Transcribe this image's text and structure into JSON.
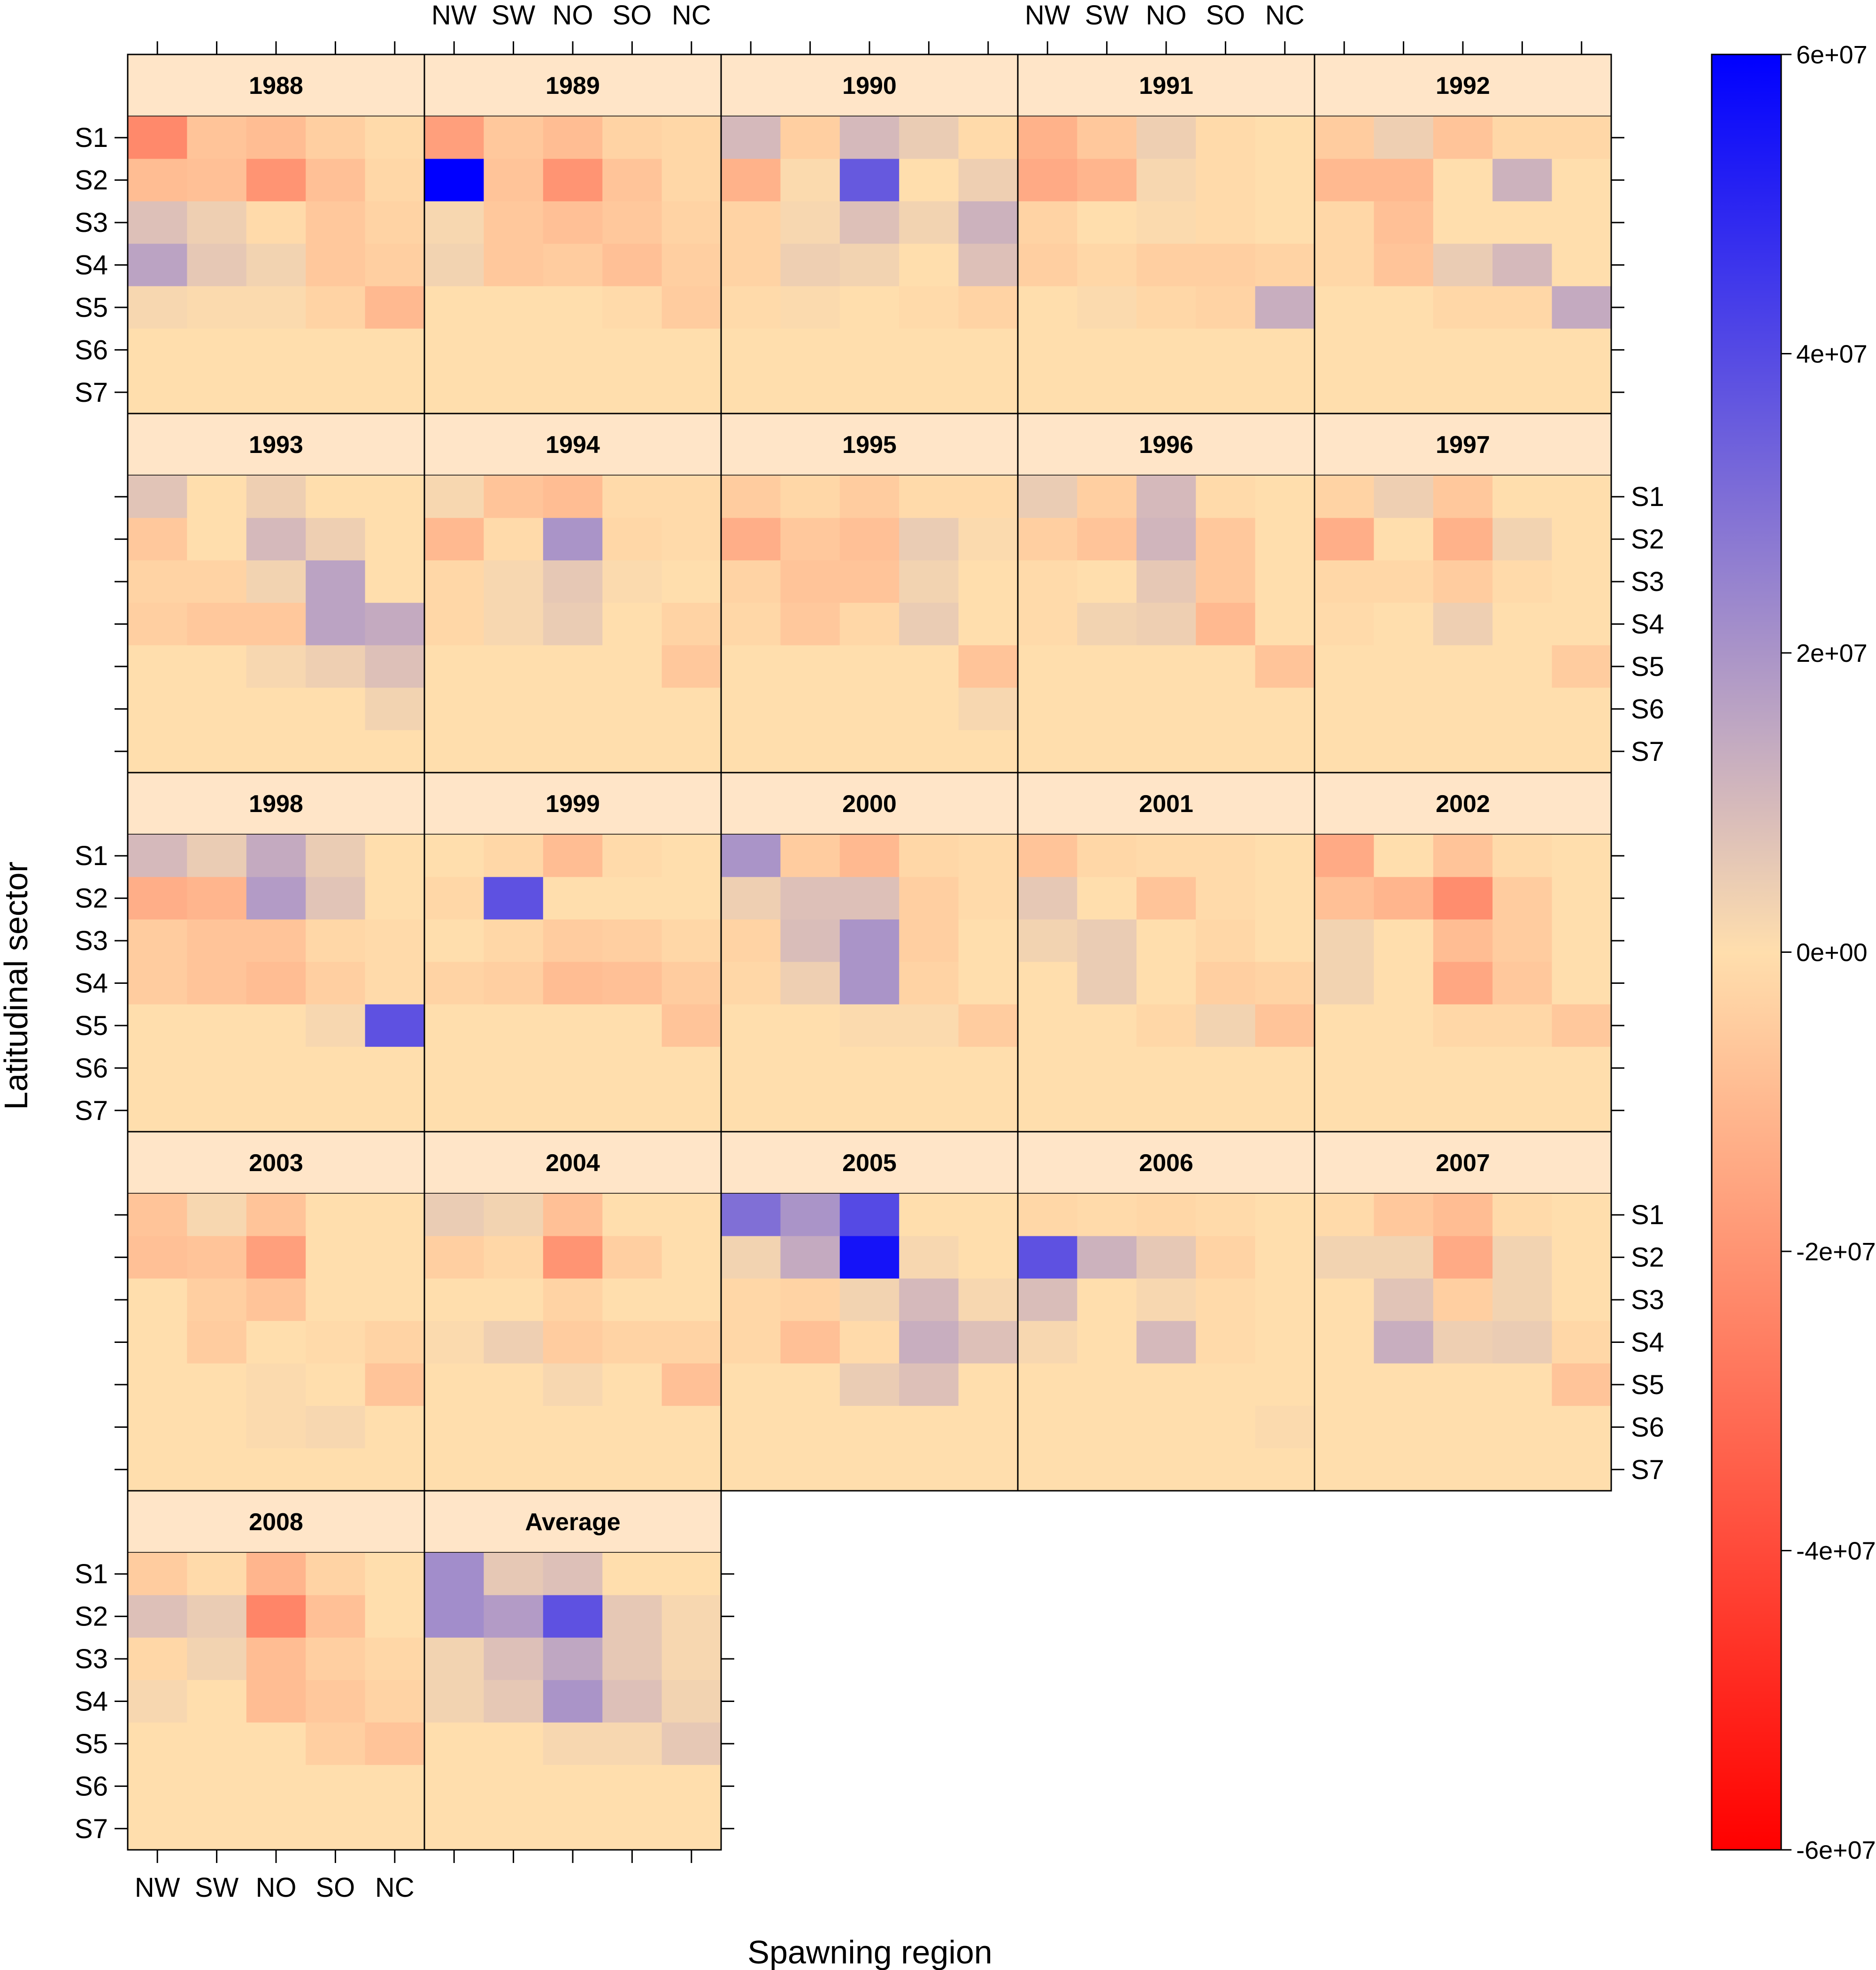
{
  "chart_data": {
    "type": "heatmap",
    "xlabel": "Spawning region",
    "ylabel": "Latitudinal sector",
    "x_categories": [
      "NW",
      "SW",
      "NO",
      "SO",
      "NC"
    ],
    "y_categories": [
      "S1",
      "S2",
      "S3",
      "S4",
      "S5",
      "S6",
      "S7"
    ],
    "value_range": [
      -60000000,
      60000000
    ],
    "colorbar": {
      "ticks": [
        60000000,
        40000000,
        20000000,
        0,
        -20000000,
        -40000000,
        -60000000
      ],
      "tick_labels": [
        "6e+07",
        "4e+07",
        "2e+07",
        "0e+00",
        "-2e+07",
        "-4e+07",
        "-6e+07"
      ],
      "colors": {
        "low": "#ff0000",
        "mid": "#ffdead",
        "high": "#0000ff"
      }
    },
    "panels": [
      {
        "label": "1988",
        "values": [
          [
            -23,
            -7,
            -9,
            -4,
            -1
          ],
          [
            -9,
            -8,
            -20,
            -8,
            -2
          ],
          [
            8,
            4,
            -1,
            -6,
            -3
          ],
          [
            16,
            6,
            3,
            -6,
            -4
          ],
          [
            2,
            1,
            1,
            -3,
            -10
          ],
          [
            0,
            0,
            0,
            0,
            0
          ],
          [
            0,
            0,
            0,
            0,
            0
          ]
        ]
      },
      {
        "label": "1989",
        "values": [
          [
            -17,
            -6,
            -9,
            -3,
            -2
          ],
          [
            60,
            -7,
            -20,
            -7,
            -2
          ],
          [
            2,
            -6,
            -8,
            -6,
            -3
          ],
          [
            3,
            -6,
            -5,
            -8,
            -4
          ],
          [
            0,
            0,
            0,
            -1,
            -5
          ],
          [
            0,
            0,
            0,
            0,
            0
          ],
          [
            0,
            0,
            0,
            0,
            0
          ]
        ]
      },
      {
        "label": "1990",
        "values": [
          [
            10,
            -4,
            10,
            5,
            -1
          ],
          [
            -12,
            1,
            36,
            0,
            4
          ],
          [
            -3,
            2,
            8,
            3,
            12
          ],
          [
            -3,
            4,
            3,
            0,
            8
          ],
          [
            -1,
            1,
            0,
            -1,
            -3
          ],
          [
            0,
            0,
            0,
            0,
            0
          ],
          [
            0,
            0,
            0,
            0,
            0
          ]
        ]
      },
      {
        "label": "1991",
        "values": [
          [
            -12,
            -6,
            4,
            -1,
            0
          ],
          [
            -14,
            -11,
            2,
            -1,
            0
          ],
          [
            -3,
            0,
            1,
            -1,
            0
          ],
          [
            -4,
            -2,
            -4,
            -4,
            -3
          ],
          [
            0,
            1,
            -2,
            -3,
            13
          ],
          [
            0,
            0,
            0,
            0,
            0
          ],
          [
            0,
            0,
            0,
            0,
            0
          ]
        ]
      },
      {
        "label": "1992",
        "values": [
          [
            -5,
            4,
            -7,
            -2,
            -2
          ],
          [
            -10,
            -10,
            0,
            12,
            0
          ],
          [
            -2,
            -8,
            0,
            0,
            0
          ],
          [
            -2,
            -7,
            5,
            10,
            0
          ],
          [
            0,
            0,
            -2,
            -2,
            14
          ],
          [
            0,
            0,
            0,
            0,
            0
          ],
          [
            0,
            0,
            0,
            0,
            0
          ]
        ]
      },
      {
        "label": "1993",
        "values": [
          [
            7,
            0,
            4,
            0,
            0
          ],
          [
            -6,
            0,
            10,
            4,
            0
          ],
          [
            -3,
            -3,
            3,
            16,
            0
          ],
          [
            -4,
            -6,
            -6,
            16,
            14
          ],
          [
            0,
            0,
            2,
            4,
            8
          ],
          [
            0,
            0,
            0,
            0,
            3
          ],
          [
            0,
            0,
            0,
            0,
            0
          ]
        ]
      },
      {
        "label": "1994",
        "values": [
          [
            2,
            -7,
            -9,
            -1,
            -1
          ],
          [
            -10,
            -1,
            20,
            -2,
            -1
          ],
          [
            -2,
            2,
            6,
            1,
            0
          ],
          [
            -2,
            2,
            5,
            0,
            -3
          ],
          [
            0,
            0,
            0,
            0,
            -6
          ],
          [
            0,
            0,
            0,
            0,
            0
          ],
          [
            0,
            0,
            0,
            0,
            0
          ]
        ]
      },
      {
        "label": "1995",
        "values": [
          [
            -5,
            -2,
            -5,
            -1,
            -1
          ],
          [
            -13,
            -6,
            -8,
            5,
            1
          ],
          [
            -3,
            -7,
            -7,
            3,
            0
          ],
          [
            -2,
            -6,
            -2,
            5,
            0
          ],
          [
            0,
            0,
            0,
            0,
            -7
          ],
          [
            0,
            0,
            0,
            0,
            2
          ],
          [
            0,
            0,
            0,
            0,
            0
          ]
        ]
      },
      {
        "label": "1996",
        "values": [
          [
            5,
            -4,
            10,
            -1,
            0
          ],
          [
            -4,
            -7,
            11,
            -6,
            0
          ],
          [
            -1,
            0,
            6,
            -6,
            0
          ],
          [
            -1,
            3,
            4,
            -10,
            0
          ],
          [
            0,
            0,
            0,
            0,
            -7
          ],
          [
            0,
            0,
            0,
            0,
            0
          ],
          [
            0,
            0,
            0,
            0,
            0
          ]
        ]
      },
      {
        "label": "1997",
        "values": [
          [
            -3,
            4,
            -6,
            0,
            0
          ],
          [
            -13,
            0,
            -12,
            3,
            0
          ],
          [
            -2,
            -2,
            -5,
            -1,
            0
          ],
          [
            -1,
            0,
            4,
            0,
            0
          ],
          [
            0,
            0,
            0,
            0,
            -5
          ],
          [
            0,
            0,
            0,
            0,
            0
          ],
          [
            0,
            0,
            0,
            0,
            0
          ]
        ]
      },
      {
        "label": "1998",
        "values": [
          [
            10,
            5,
            14,
            5,
            0
          ],
          [
            -13,
            -11,
            18,
            7,
            0
          ],
          [
            -5,
            -7,
            -7,
            -2,
            -1
          ],
          [
            -5,
            -7,
            -9,
            -4,
            -1
          ],
          [
            0,
            0,
            0,
            2,
            38
          ],
          [
            0,
            0,
            0,
            0,
            0
          ],
          [
            0,
            0,
            0,
            0,
            0
          ]
        ]
      },
      {
        "label": "1999",
        "values": [
          [
            0,
            -2,
            -9,
            -1,
            0
          ],
          [
            -2,
            38,
            0,
            0,
            0
          ],
          [
            0,
            -2,
            -5,
            -4,
            -2
          ],
          [
            -3,
            -4,
            -9,
            -8,
            -5
          ],
          [
            0,
            0,
            0,
            0,
            -7
          ],
          [
            0,
            0,
            0,
            0,
            0
          ],
          [
            0,
            0,
            0,
            0,
            0
          ]
        ]
      },
      {
        "label": "2000",
        "values": [
          [
            20,
            -5,
            -10,
            -2,
            -1
          ],
          [
            4,
            8,
            8,
            -4,
            -1
          ],
          [
            -3,
            9,
            20,
            -4,
            0
          ],
          [
            -2,
            4,
            20,
            -3,
            0
          ],
          [
            0,
            0,
            1,
            1,
            -5
          ],
          [
            0,
            0,
            0,
            0,
            0
          ],
          [
            0,
            0,
            0,
            0,
            0
          ]
        ]
      },
      {
        "label": "2001",
        "values": [
          [
            -7,
            -2,
            -1,
            -1,
            0
          ],
          [
            6,
            0,
            -7,
            -1,
            0
          ],
          [
            3,
            5,
            0,
            -2,
            0
          ],
          [
            0,
            5,
            0,
            -4,
            -3
          ],
          [
            0,
            0,
            -2,
            3,
            -7
          ],
          [
            0,
            0,
            0,
            0,
            0
          ],
          [
            0,
            0,
            0,
            0,
            0
          ]
        ]
      },
      {
        "label": "2002",
        "values": [
          [
            -14,
            0,
            -7,
            -1,
            0
          ],
          [
            -8,
            -11,
            -22,
            -5,
            0
          ],
          [
            3,
            0,
            -9,
            -5,
            0
          ],
          [
            3,
            0,
            -15,
            -6,
            0
          ],
          [
            0,
            0,
            -2,
            -2,
            -6
          ],
          [
            0,
            0,
            0,
            0,
            0
          ],
          [
            0,
            0,
            0,
            0,
            0
          ]
        ]
      },
      {
        "label": "2003",
        "values": [
          [
            -7,
            2,
            -7,
            0,
            0
          ],
          [
            -8,
            -7,
            -17,
            0,
            0
          ],
          [
            0,
            -4,
            -7,
            0,
            0
          ],
          [
            0,
            -5,
            0,
            -1,
            -3
          ],
          [
            0,
            0,
            1,
            0,
            -7
          ],
          [
            0,
            0,
            1,
            2,
            0
          ],
          [
            0,
            0,
            0,
            0,
            0
          ]
        ]
      },
      {
        "label": "2004",
        "values": [
          [
            5,
            3,
            -8,
            0,
            0
          ],
          [
            -4,
            -2,
            -20,
            -4,
            0
          ],
          [
            0,
            0,
            -3,
            0,
            0
          ],
          [
            1,
            4,
            -5,
            -3,
            -3
          ],
          [
            0,
            0,
            2,
            0,
            -8
          ],
          [
            0,
            0,
            0,
            0,
            0
          ],
          [
            0,
            0,
            0,
            0,
            0
          ]
        ]
      },
      {
        "label": "2005",
        "values": [
          [
            30,
            20,
            40,
            0,
            0
          ],
          [
            3,
            14,
            55,
            2,
            0
          ],
          [
            -2,
            -3,
            3,
            10,
            2
          ],
          [
            -2,
            -8,
            -1,
            13,
            8
          ],
          [
            0,
            0,
            5,
            8,
            0
          ],
          [
            0,
            0,
            0,
            0,
            0
          ],
          [
            0,
            0,
            0,
            0,
            0
          ]
        ]
      },
      {
        "label": "2006",
        "values": [
          [
            -2,
            -1,
            -2,
            -1,
            0
          ],
          [
            38,
            12,
            6,
            -3,
            0
          ],
          [
            9,
            0,
            2,
            -1,
            0
          ],
          [
            2,
            0,
            10,
            -1,
            0
          ],
          [
            0,
            0,
            0,
            0,
            0
          ],
          [
            0,
            0,
            0,
            0,
            1
          ],
          [
            0,
            0,
            0,
            0,
            0
          ]
        ]
      },
      {
        "label": "2007",
        "values": [
          [
            -1,
            -6,
            -9,
            -1,
            0
          ],
          [
            3,
            3,
            -14,
            3,
            0
          ],
          [
            0,
            7,
            -4,
            3,
            0
          ],
          [
            0,
            13,
            4,
            5,
            -2
          ],
          [
            0,
            0,
            0,
            0,
            -7
          ],
          [
            0,
            0,
            0,
            0,
            0
          ],
          [
            0,
            0,
            0,
            0,
            0
          ]
        ]
      },
      {
        "label": "2008",
        "values": [
          [
            -5,
            -1,
            -11,
            -3,
            0
          ],
          [
            8,
            5,
            -24,
            -8,
            0
          ],
          [
            -2,
            3,
            -9,
            -4,
            -2
          ],
          [
            2,
            0,
            -9,
            -6,
            -3
          ],
          [
            0,
            0,
            0,
            -4,
            -7
          ],
          [
            0,
            0,
            0,
            0,
            0
          ],
          [
            0,
            0,
            0,
            0,
            0
          ]
        ]
      },
      {
        "label": "Average",
        "values": [
          [
            22,
            6,
            8,
            0,
            0
          ],
          [
            22,
            18,
            38,
            6,
            2
          ],
          [
            3,
            8,
            15,
            6,
            2
          ],
          [
            3,
            6,
            20,
            8,
            3
          ],
          [
            0,
            0,
            2,
            2,
            6
          ],
          [
            0,
            0,
            0,
            0,
            0
          ],
          [
            0,
            0,
            0,
            0,
            0
          ]
        ]
      }
    ]
  }
}
